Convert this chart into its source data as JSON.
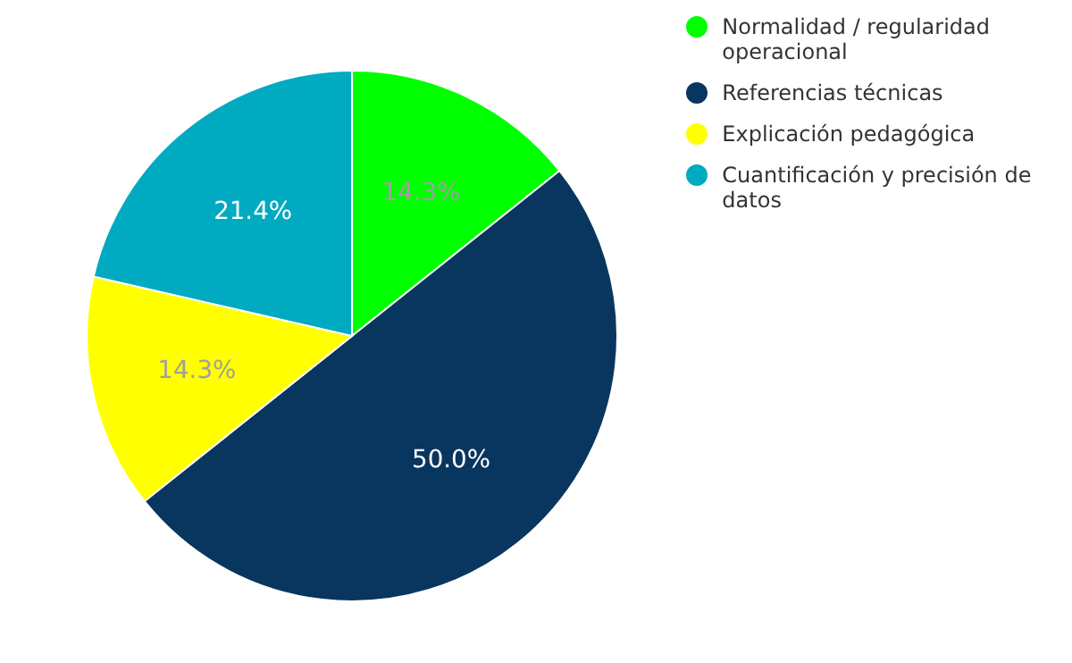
{
  "chart_data": {
    "type": "pie",
    "categories": [
      "Normalidad / regularidad operacional",
      "Referencias técnicas",
      "Explicación pedagógica",
      "Cuantificación y precisión de datos"
    ],
    "values": [
      14.3,
      50.0,
      14.3,
      21.4
    ],
    "colors": [
      "#00ff00",
      "#08365f",
      "#ffff00",
      "#00aac0"
    ],
    "value_labels": [
      "14.3%",
      "50.0%",
      "14.3%",
      "21.4%"
    ],
    "legend": "right"
  }
}
